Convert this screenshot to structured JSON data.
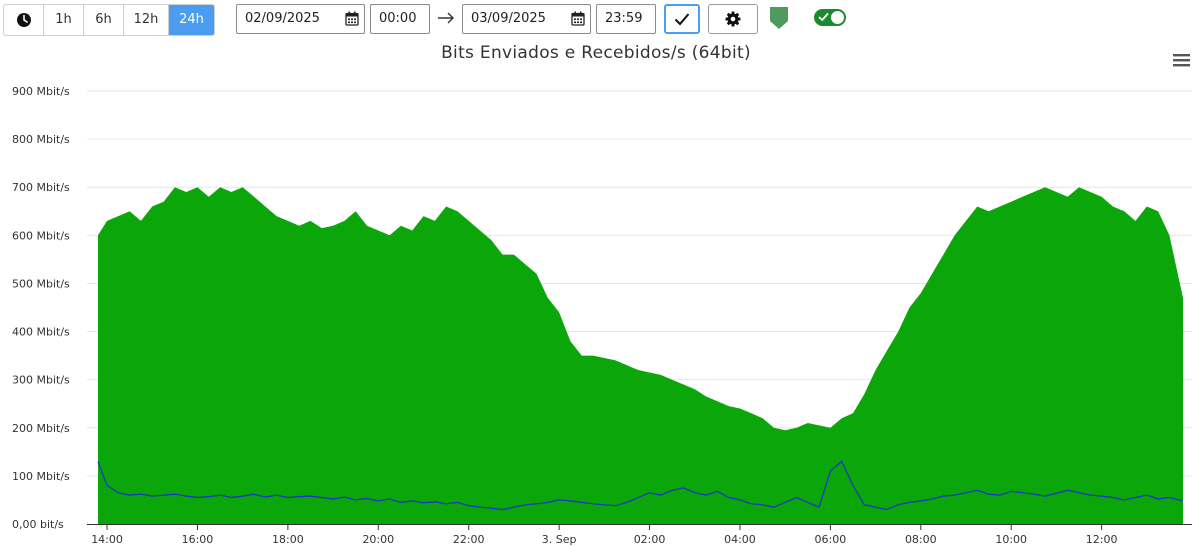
{
  "toolbar": {
    "range_buttons": [
      {
        "label": "1h",
        "active": false
      },
      {
        "label": "6h",
        "active": false
      },
      {
        "label": "12h",
        "active": false
      },
      {
        "label": "24h",
        "active": true
      }
    ],
    "start_date": "02/09/2025",
    "start_time": "00:00",
    "end_date": "03/09/2025",
    "end_time": "23:59",
    "icons": {
      "clock": "clock-icon",
      "calendar": "calendar-icon",
      "arrow": "arrow-right-icon",
      "confirm": "check-icon",
      "settings": "gear-icon",
      "shield": "shield-icon",
      "toggle": "toggle-on"
    },
    "toggle_on": true
  },
  "colors": {
    "received_area": "#0aa60a",
    "sent_line": "#1a2fd0",
    "active_button": "#4a9df0",
    "shield": "#4f9a5c",
    "toggle": "#1a8a2c",
    "grid": "#e6e6e6"
  },
  "chart_data": {
    "type": "area",
    "title": "Bits Enviados e Recebidos/s (64bit)",
    "xlabel": "",
    "ylabel": "",
    "y_unit": "Mbit/s",
    "ylim": [
      0,
      900
    ],
    "y_ticks": [
      {
        "value": 0,
        "label": "0,00 bit/s"
      },
      {
        "value": 100,
        "label": "100 Mbit/s"
      },
      {
        "value": 200,
        "label": "200 Mbit/s"
      },
      {
        "value": 300,
        "label": "300 Mbit/s"
      },
      {
        "value": 400,
        "label": "400 Mbit/s"
      },
      {
        "value": 500,
        "label": "500 Mbit/s"
      },
      {
        "value": 600,
        "label": "600 Mbit/s"
      },
      {
        "value": 700,
        "label": "700 Mbit/s"
      },
      {
        "value": 800,
        "label": "800 Mbit/s"
      },
      {
        "value": 900,
        "label": "900 Mbit/s"
      }
    ],
    "x_ticks": [
      {
        "hour": 14,
        "label": "14:00"
      },
      {
        "hour": 16,
        "label": "16:00"
      },
      {
        "hour": 18,
        "label": "18:00"
      },
      {
        "hour": 20,
        "label": "20:00"
      },
      {
        "hour": 22,
        "label": "22:00"
      },
      {
        "hour": 24,
        "label": "3. Sep"
      },
      {
        "hour": 26,
        "label": "02:00"
      },
      {
        "hour": 28,
        "label": "04:00"
      },
      {
        "hour": 30,
        "label": "06:00"
      },
      {
        "hour": 32,
        "label": "08:00"
      },
      {
        "hour": 34,
        "label": "10:00"
      },
      {
        "hour": 36,
        "label": "12:00"
      }
    ],
    "xlim_hours": [
      13.8,
      37.8
    ],
    "grid": true,
    "legend": "none",
    "series": [
      {
        "kind": "area",
        "x_hours": [
          13.8,
          14.0,
          14.25,
          14.5,
          14.75,
          15.0,
          15.25,
          15.5,
          15.75,
          16.0,
          16.25,
          16.5,
          16.75,
          17.0,
          17.25,
          17.5,
          17.75,
          18.0,
          18.25,
          18.5,
          18.75,
          19.0,
          19.25,
          19.5,
          19.75,
          20.0,
          20.25,
          20.5,
          20.75,
          21.0,
          21.25,
          21.5,
          21.75,
          22.0,
          22.25,
          22.5,
          22.75,
          23.0,
          23.25,
          23.5,
          23.75,
          24.0,
          24.25,
          24.5,
          24.75,
          25.0,
          25.25,
          25.5,
          25.75,
          26.0,
          26.25,
          26.5,
          26.75,
          27.0,
          27.25,
          27.5,
          27.75,
          28.0,
          28.25,
          28.5,
          28.75,
          29.0,
          29.25,
          29.5,
          29.75,
          30.0,
          30.25,
          30.5,
          30.75,
          31.0,
          31.25,
          31.5,
          31.75,
          32.0,
          32.25,
          32.5,
          32.75,
          33.0,
          33.25,
          33.5,
          33.75,
          34.0,
          34.25,
          34.5,
          34.75,
          35.0,
          35.25,
          35.5,
          35.75,
          36.0,
          36.25,
          36.5,
          36.75,
          37.0,
          37.25,
          37.5,
          37.8
        ],
        "values": [
          600,
          630,
          640,
          650,
          630,
          660,
          670,
          700,
          690,
          700,
          680,
          700,
          690,
          700,
          680,
          660,
          640,
          630,
          620,
          630,
          615,
          620,
          630,
          650,
          620,
          610,
          600,
          620,
          610,
          640,
          630,
          660,
          650,
          630,
          610,
          590,
          560,
          560,
          540,
          520,
          470,
          440,
          380,
          350,
          350,
          345,
          340,
          330,
          320,
          315,
          310,
          300,
          290,
          280,
          265,
          255,
          245,
          240,
          230,
          220,
          200,
          195,
          200,
          210,
          205,
          200,
          220,
          230,
          270,
          320,
          360,
          400,
          450,
          480,
          520,
          560,
          600,
          630,
          660,
          650,
          660,
          670,
          680,
          690,
          700,
          690,
          680,
          700,
          690,
          680,
          660,
          650,
          630,
          660,
          650,
          600,
          470
        ]
      },
      {
        "kind": "line",
        "x_hours": [
          13.8,
          14.0,
          14.25,
          14.5,
          14.75,
          15.0,
          15.25,
          15.5,
          15.75,
          16.0,
          16.25,
          16.5,
          16.75,
          17.0,
          17.25,
          17.5,
          17.75,
          18.0,
          18.25,
          18.5,
          18.75,
          19.0,
          19.25,
          19.5,
          19.75,
          20.0,
          20.25,
          20.5,
          20.75,
          21.0,
          21.25,
          21.5,
          21.75,
          22.0,
          22.25,
          22.5,
          22.75,
          23.0,
          23.25,
          23.5,
          23.75,
          24.0,
          24.25,
          24.5,
          24.75,
          25.0,
          25.25,
          25.5,
          25.75,
          26.0,
          26.25,
          26.5,
          26.75,
          27.0,
          27.25,
          27.5,
          27.75,
          28.0,
          28.25,
          28.5,
          28.75,
          29.0,
          29.25,
          29.5,
          29.75,
          30.0,
          30.25,
          30.5,
          30.75,
          31.0,
          31.25,
          31.5,
          31.75,
          32.0,
          32.25,
          32.5,
          32.75,
          33.0,
          33.25,
          33.5,
          33.75,
          34.0,
          34.25,
          34.5,
          34.75,
          35.0,
          35.25,
          35.5,
          35.75,
          36.0,
          36.25,
          36.5,
          36.75,
          37.0,
          37.25,
          37.5,
          37.8
        ],
        "values": [
          130,
          80,
          65,
          60,
          62,
          58,
          60,
          62,
          58,
          55,
          57,
          60,
          55,
          58,
          62,
          56,
          60,
          55,
          57,
          58,
          55,
          52,
          56,
          50,
          53,
          48,
          52,
          45,
          48,
          44,
          46,
          42,
          45,
          38,
          35,
          33,
          30,
          35,
          40,
          42,
          45,
          50,
          48,
          45,
          42,
          40,
          38,
          45,
          55,
          65,
          60,
          70,
          75,
          65,
          60,
          68,
          55,
          50,
          42,
          40,
          35,
          45,
          55,
          45,
          35,
          110,
          130,
          80,
          40,
          35,
          30,
          40,
          45,
          48,
          52,
          58,
          60,
          65,
          70,
          62,
          60,
          68,
          65,
          62,
          58,
          64,
          70,
          65,
          60,
          58,
          55,
          50,
          55,
          60,
          52,
          55,
          48
        ]
      }
    ]
  }
}
